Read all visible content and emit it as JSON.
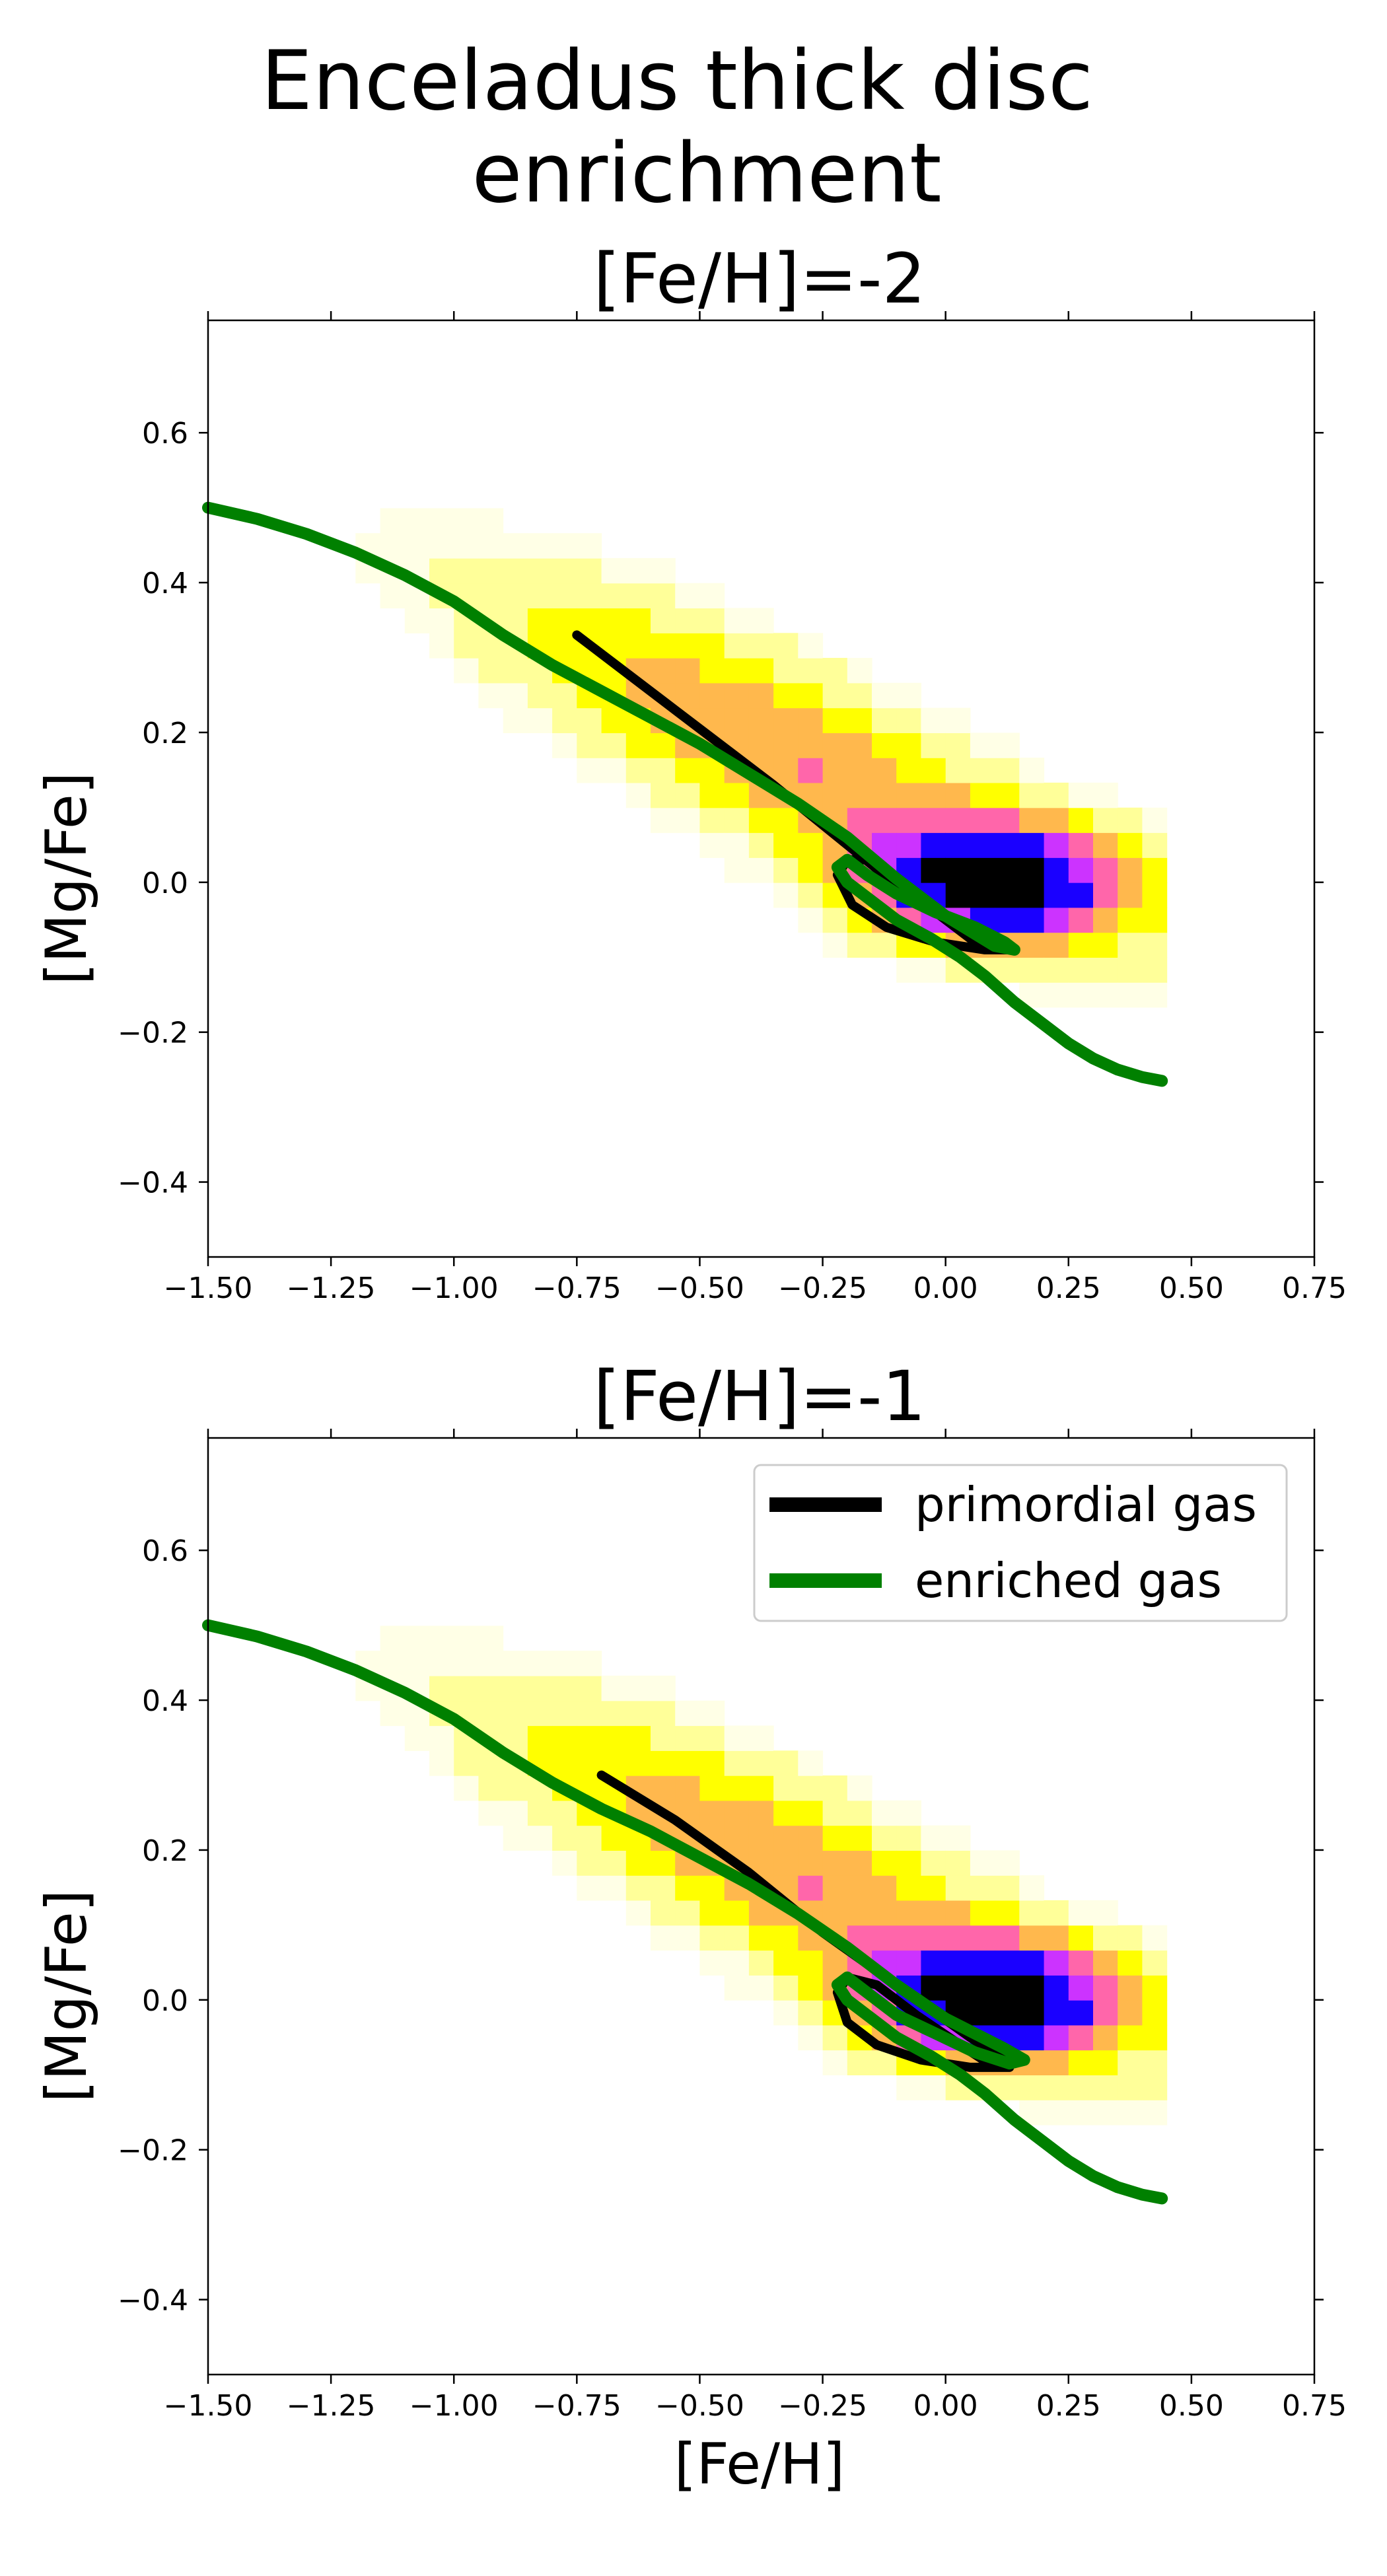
{
  "figure": {
    "suptitle_line1": "Enceladus thick disc",
    "suptitle_line2": "enrichment"
  },
  "colors": {
    "primordial": "#000000",
    "enriched": "#008000",
    "hist_ramp": [
      "#ffffe6",
      "#ffff99",
      "#ffff00",
      "#ffb84d",
      "#ff66aa",
      "#cc33ff",
      "#1a00ff",
      "#000000"
    ]
  },
  "chart_data": [
    {
      "type": "line",
      "title": "[Fe/H]=-2",
      "xlabel": "",
      "ylabel": "[Mg/Fe]",
      "xlim": [
        -1.5,
        0.75
      ],
      "ylim": [
        -0.5,
        0.75
      ],
      "xticks": [
        "−1.50",
        "−1.25",
        "−1.00",
        "−0.75",
        "−0.50",
        "−0.25",
        "0.00",
        "0.25",
        "0.50",
        "0.75"
      ],
      "yticks": [
        "−0.4",
        "−0.2",
        "0.0",
        "0.2",
        "0.4",
        "0.6"
      ],
      "background": "2D density histogram of stars, peak near [Fe/H]=0.1, [Mg/Fe]=0.0",
      "series": [
        {
          "name": "primordial gas",
          "color": "#000000",
          "x": [
            -0.75,
            -0.55,
            -0.35,
            -0.2,
            -0.05,
            0.1,
            0.13,
            0.08,
            -0.02,
            -0.12,
            -0.19,
            -0.22,
            -0.2,
            -0.16,
            -0.1,
            -0.02,
            0.06,
            0.12
          ],
          "y": [
            0.33,
            0.23,
            0.13,
            0.05,
            -0.03,
            -0.08,
            -0.09,
            -0.09,
            -0.08,
            -0.06,
            -0.03,
            0.01,
            0.03,
            0.03,
            0.0,
            -0.04,
            -0.08,
            -0.09
          ]
        },
        {
          "name": "enriched gas",
          "color": "#008000",
          "x": [
            -1.5,
            -1.4,
            -1.3,
            -1.2,
            -1.1,
            -1.0,
            -0.9,
            -0.8,
            -0.7,
            -0.6,
            -0.5,
            -0.4,
            -0.3,
            -0.2,
            -0.1,
            0.0,
            0.05,
            0.1,
            0.14,
            0.12,
            0.06,
            -0.02,
            -0.1,
            -0.16,
            -0.2,
            -0.22,
            -0.2,
            -0.16,
            -0.1,
            -0.03,
            0.03,
            0.08,
            0.14,
            0.2,
            0.25,
            0.3,
            0.35,
            0.4,
            0.44
          ],
          "y": [
            0.5,
            0.485,
            0.465,
            0.44,
            0.41,
            0.375,
            0.33,
            0.29,
            0.255,
            0.22,
            0.185,
            0.145,
            0.105,
            0.06,
            0.005,
            -0.045,
            -0.065,
            -0.085,
            -0.09,
            -0.08,
            -0.06,
            -0.04,
            -0.015,
            0.01,
            0.03,
            0.02,
            0.0,
            -0.02,
            -0.05,
            -0.075,
            -0.1,
            -0.125,
            -0.16,
            -0.19,
            -0.215,
            -0.235,
            -0.25,
            -0.26,
            -0.265
          ]
        }
      ]
    },
    {
      "type": "line",
      "title": "[Fe/H]=-1",
      "xlabel": "[Fe/H]",
      "ylabel": "[Mg/Fe]",
      "xlim": [
        -1.5,
        0.75
      ],
      "ylim": [
        -0.5,
        0.75
      ],
      "xticks": [
        "−1.50",
        "−1.25",
        "−1.00",
        "−0.75",
        "−0.50",
        "−0.25",
        "0.00",
        "0.25",
        "0.50",
        "0.75"
      ],
      "yticks": [
        "−0.4",
        "−0.2",
        "0.0",
        "0.2",
        "0.4",
        "0.6"
      ],
      "legend": {
        "placement": "upper right",
        "entries": [
          "primordial gas",
          "enriched gas"
        ]
      },
      "background": "2D density histogram of stars, peak near [Fe/H]=0.1, [Mg/Fe]=0.0",
      "series": [
        {
          "name": "primordial gas",
          "color": "#000000",
          "x": [
            -0.7,
            -0.55,
            -0.4,
            -0.25,
            -0.1,
            0.05,
            0.12,
            0.13,
            0.05,
            -0.05,
            -0.14,
            -0.2,
            -0.22,
            -0.2,
            -0.14,
            -0.06,
            0.03,
            0.1
          ],
          "y": [
            0.3,
            0.24,
            0.17,
            0.09,
            0.02,
            -0.05,
            -0.08,
            -0.09,
            -0.09,
            -0.08,
            -0.06,
            -0.03,
            0.01,
            0.03,
            0.02,
            -0.02,
            -0.06,
            -0.09
          ]
        },
        {
          "name": "enriched gas",
          "color": "#008000",
          "x": [
            -1.5,
            -1.4,
            -1.3,
            -1.2,
            -1.1,
            -1.0,
            -0.9,
            -0.8,
            -0.7,
            -0.6,
            -0.5,
            -0.4,
            -0.3,
            -0.2,
            -0.1,
            0.0,
            0.06,
            0.12,
            0.16,
            0.13,
            0.06,
            -0.02,
            -0.1,
            -0.16,
            -0.2,
            -0.22,
            -0.2,
            -0.16,
            -0.1,
            -0.03,
            0.03,
            0.08,
            0.14,
            0.2,
            0.25,
            0.3,
            0.35,
            0.4,
            0.44
          ],
          "y": [
            0.5,
            0.485,
            0.465,
            0.44,
            0.41,
            0.375,
            0.33,
            0.29,
            0.255,
            0.225,
            0.19,
            0.155,
            0.115,
            0.07,
            0.02,
            -0.025,
            -0.045,
            -0.065,
            -0.08,
            -0.085,
            -0.07,
            -0.045,
            -0.02,
            0.01,
            0.03,
            0.02,
            0.0,
            -0.02,
            -0.05,
            -0.075,
            -0.1,
            -0.125,
            -0.16,
            -0.19,
            -0.215,
            -0.235,
            -0.25,
            -0.26,
            -0.265
          ]
        }
      ]
    }
  ]
}
